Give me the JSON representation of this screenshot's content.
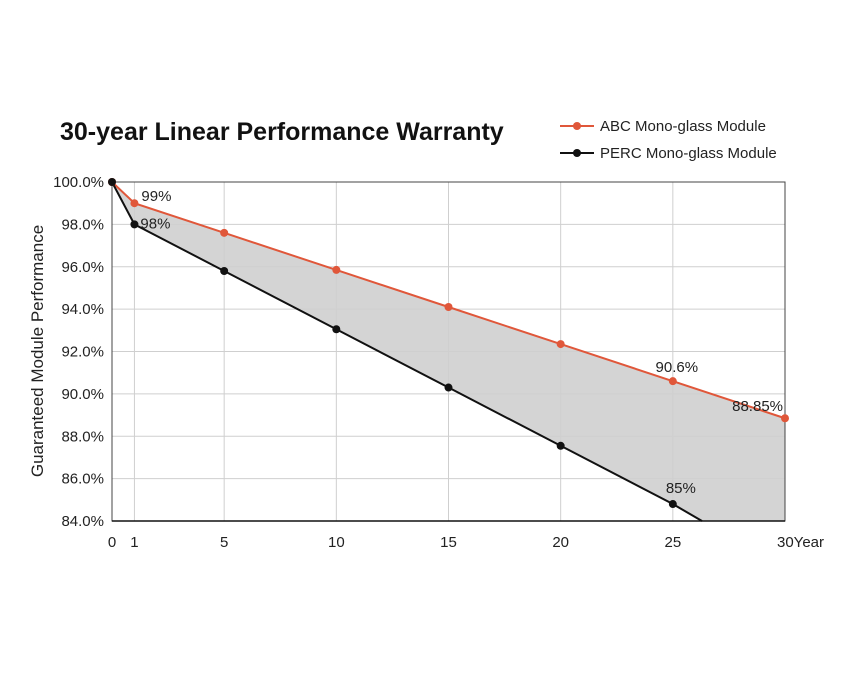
{
  "chart_data": {
    "type": "line",
    "title": "30-year Linear Performance Warranty",
    "xlabel": "",
    "ylabel": "Guaranteed Module Performance",
    "x_tick_labels": [
      "0",
      "1",
      "5",
      "10",
      "15",
      "20",
      "25",
      "30Year"
    ],
    "x_ticks": [
      0,
      1,
      5,
      10,
      15,
      20,
      25,
      30
    ],
    "xlim": [
      0,
      30
    ],
    "y_tick_labels": [
      "100.0%",
      "98.0%",
      "96.0%",
      "94.0%",
      "92.0%",
      "90.0%",
      "88.0%",
      "86.0%",
      "84.0%"
    ],
    "y_ticks": [
      100,
      98,
      96,
      94,
      92,
      90,
      88,
      86,
      84
    ],
    "ylim": [
      84,
      100
    ],
    "grid": true,
    "legend_position": "top-right",
    "fill_between": true,
    "series": [
      {
        "name": "ABC Mono-glass Module",
        "color": "#e0573a",
        "x": [
          0,
          1,
          5,
          10,
          15,
          20,
          25,
          30
        ],
        "values": [
          100,
          99,
          97.6,
          95.85,
          94.1,
          92.35,
          90.6,
          88.85
        ],
        "labels": [
          {
            "x": 1,
            "text": "99%"
          },
          {
            "x": 25,
            "text": "90.6%"
          },
          {
            "x": 30,
            "text": "88.85%"
          }
        ]
      },
      {
        "name": "PERC Mono-glass Module",
        "color": "#111111",
        "x": [
          0,
          1,
          5,
          10,
          15,
          20,
          25,
          26.3
        ],
        "markers": [
          0,
          1,
          5,
          10,
          15,
          20,
          25
        ],
        "values": [
          100,
          98,
          95.8,
          93.05,
          90.3,
          87.55,
          84.8,
          84.0
        ],
        "labels": [
          {
            "x": 1,
            "text": "98%"
          },
          {
            "x": 25,
            "text": "85%"
          }
        ]
      }
    ]
  }
}
